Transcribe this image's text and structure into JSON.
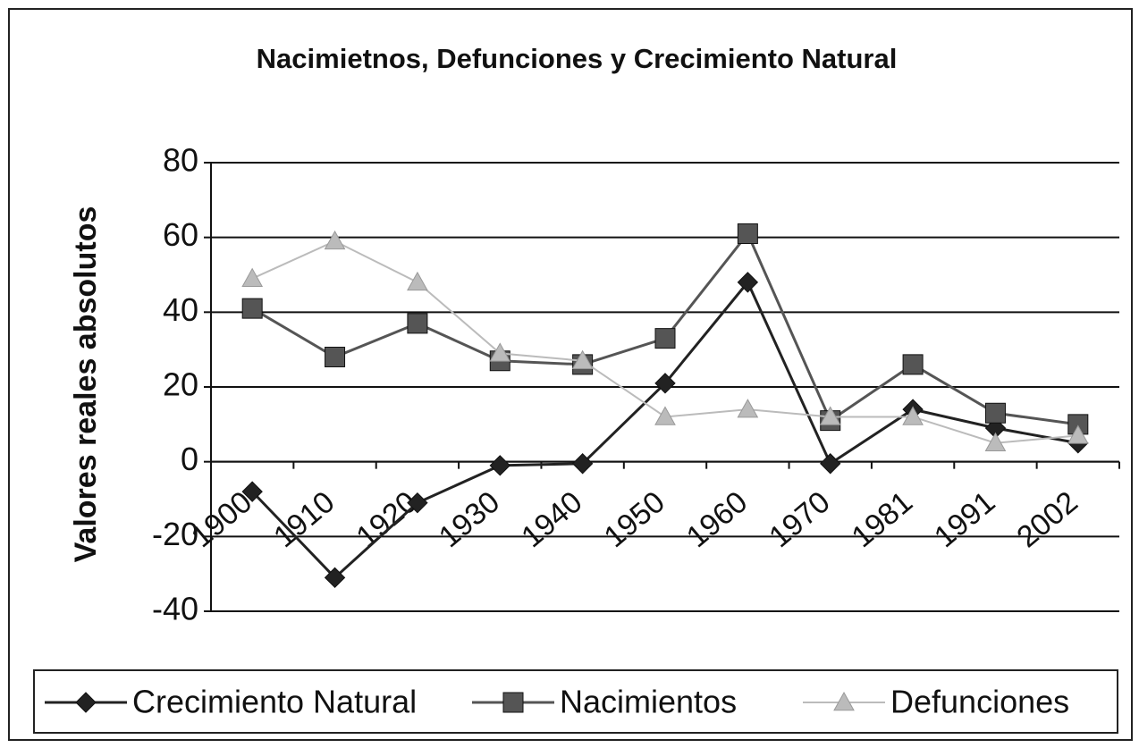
{
  "chart_data": {
    "type": "line",
    "title": "Nacimietnos, Defunciones y Crecimiento Natural",
    "y_label": "Valores reales absolutos",
    "categories": [
      "1900",
      "1910",
      "1920",
      "1930",
      "1940",
      "1950",
      "1960",
      "1970",
      "1981",
      "1991",
      "2002"
    ],
    "series": [
      {
        "name": "Crecimiento Natural",
        "color": "#222222",
        "marker": "diamond",
        "values": [
          -8,
          -31,
          -11,
          -1,
          -0.5,
          21,
          48,
          -0.5,
          14,
          9,
          5
        ]
      },
      {
        "name": "Nacimientos",
        "color": "#555555",
        "marker": "square",
        "values": [
          41,
          28,
          37,
          27,
          26,
          33,
          61,
          11,
          26,
          13,
          10
        ]
      },
      {
        "name": "Defunciones",
        "color": "#bbbbbb",
        "marker": "triangle",
        "values": [
          49,
          59,
          48,
          29,
          27,
          12,
          14,
          12,
          12,
          5,
          7
        ]
      }
    ],
    "ylim": [
      -40,
      80
    ],
    "yticks": [
      -40,
      -20,
      0,
      20,
      40,
      60,
      80
    ],
    "grid": true,
    "legend": "bottom"
  }
}
